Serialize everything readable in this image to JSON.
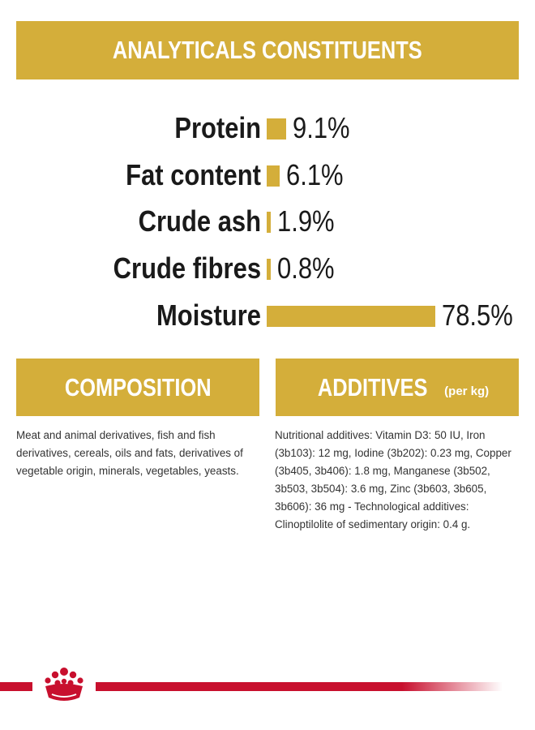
{
  "headers": {
    "analytical": "ANALYTICALS CONSTITUENTS",
    "composition": "COMPOSITION",
    "additives": "ADDITIVES",
    "additives_unit": "(per kg)"
  },
  "nutrients": [
    {
      "label": "Protein",
      "value": "9.1%",
      "percent": 9.1
    },
    {
      "label": "Fat content",
      "value": "6.1%",
      "percent": 6.1
    },
    {
      "label": "Crude ash",
      "value": "1.9%",
      "percent": 1.9
    },
    {
      "label": "Crude fibres",
      "value": "0.8%",
      "percent": 0.8
    },
    {
      "label": "Moisture",
      "value": "78.5%",
      "percent": 78.5
    }
  ],
  "composition_text": "Meat and animal derivatives, fish and fish derivatives, cereals, oils and fats, derivatives of vegetable origin, minerals, vegetables, yeasts.",
  "additives_text": "Nutritional additives: Vitamin D3: 50 IU, Iron (3b103): 12 mg, Iodine (3b202): 0.23 mg, Copper (3b405, 3b406): 1.8 mg, Manganese (3b502, 3b503, 3b504): 3.6 mg, Zinc (3b603, 3b605, 3b606): 36 mg - Technological additives: Clinoptilolite of sedimentary origin: 0.4 g.",
  "colors": {
    "accent": "#d4ae3a",
    "brand_red": "#c8102e"
  },
  "logo_icon": "crown-icon"
}
